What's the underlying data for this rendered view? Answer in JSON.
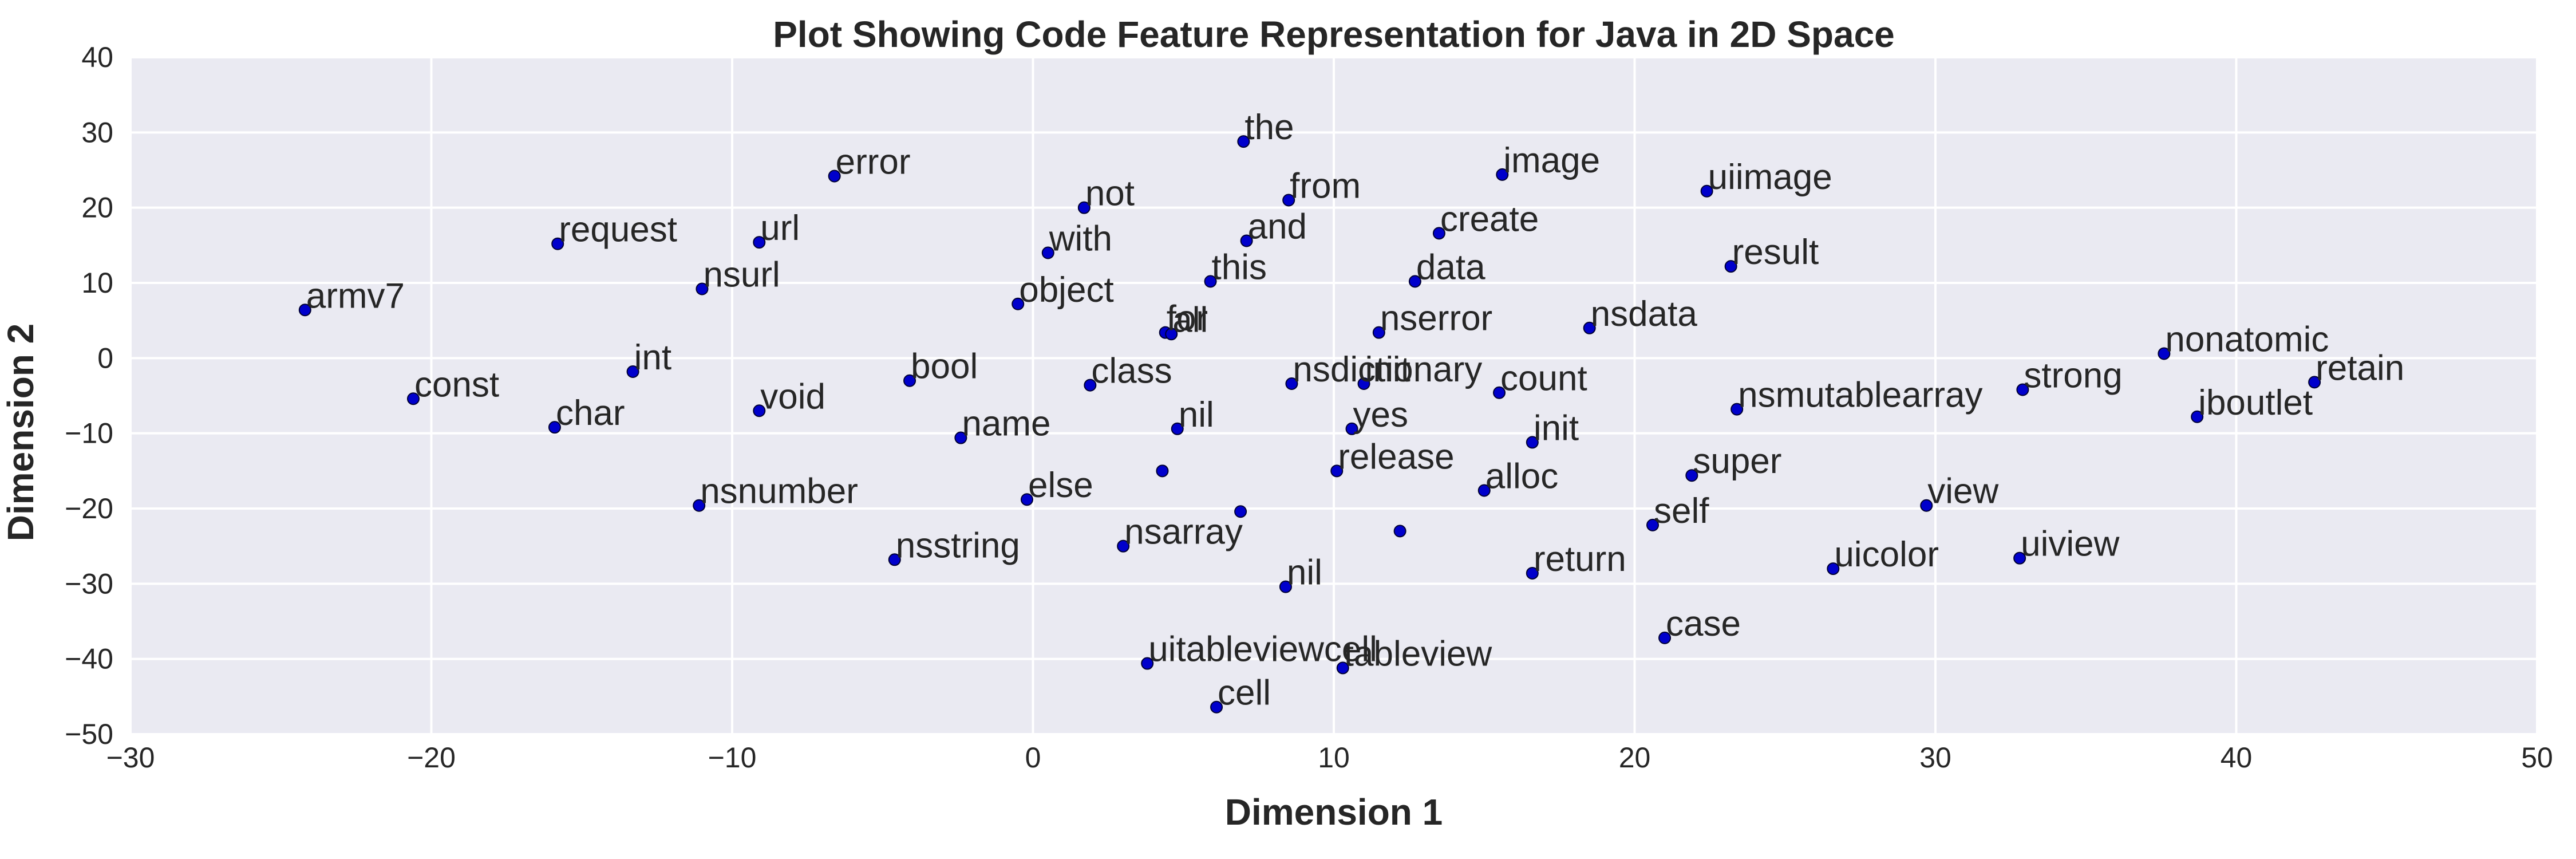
{
  "chart_data": {
    "type": "scatter",
    "title": "Plot Showing Code Feature Representation for Java in 2D Space",
    "xlabel": "Dimension 1",
    "ylabel": "Dimension 2",
    "xlim": [
      -30,
      50
    ],
    "ylim": [
      -50,
      40
    ],
    "xticks": [
      -30,
      -20,
      -10,
      0,
      10,
      20,
      30,
      40,
      50
    ],
    "yticks": [
      -50,
      -40,
      -30,
      -20,
      -10,
      0,
      10,
      20,
      30,
      40
    ],
    "xtick_labels": [
      "−30",
      "−20",
      "−10",
      "0",
      "10",
      "20",
      "30",
      "40",
      "50"
    ],
    "ytick_labels": [
      "−50",
      "−40",
      "−30",
      "−20",
      "−10",
      "0",
      "10",
      "20",
      "30",
      "40"
    ],
    "grid": true,
    "background_color": "#eaeaf2",
    "point_color": "#0000cc",
    "points": [
      {
        "label": "the",
        "x": 7.0,
        "y": 28.8
      },
      {
        "label": "image",
        "x": 15.6,
        "y": 24.4
      },
      {
        "label": "uiimage",
        "x": 22.4,
        "y": 22.2
      },
      {
        "label": "error",
        "x": -6.6,
        "y": 24.2
      },
      {
        "label": "from",
        "x": 8.5,
        "y": 21.0
      },
      {
        "label": "not",
        "x": 1.7,
        "y": 20.0
      },
      {
        "label": "request",
        "x": -15.8,
        "y": 15.2
      },
      {
        "label": "url",
        "x": -9.1,
        "y": 15.4
      },
      {
        "label": "with",
        "x": 0.5,
        "y": 14.0
      },
      {
        "label": "and",
        "x": 7.1,
        "y": 15.6
      },
      {
        "label": "create",
        "x": 13.5,
        "y": 16.6
      },
      {
        "label": "result",
        "x": 23.2,
        "y": 12.2
      },
      {
        "label": "nsurl",
        "x": -11.0,
        "y": 9.2
      },
      {
        "label": "this",
        "x": 5.9,
        "y": 10.2
      },
      {
        "label": "data",
        "x": 12.7,
        "y": 10.2
      },
      {
        "label": "armv7",
        "x": -24.2,
        "y": 6.4
      },
      {
        "label": "object",
        "x": -0.5,
        "y": 7.2
      },
      {
        "label": "for",
        "x": 4.4,
        "y": 3.4
      },
      {
        "label": "nserror",
        "x": 11.5,
        "y": 3.4
      },
      {
        "label": "nsdata",
        "x": 18.5,
        "y": 4.0
      },
      {
        "label": "nonatomic",
        "x": 37.6,
        "y": 0.6
      },
      {
        "label": "all",
        "x": 4.6,
        "y": 3.2
      },
      {
        "label": "int",
        "x": -13.3,
        "y": -1.8
      },
      {
        "label": "bool",
        "x": -4.1,
        "y": -3.0
      },
      {
        "label": "class",
        "x": 1.9,
        "y": -3.6
      },
      {
        "label": "nsdictionary",
        "x": 8.6,
        "y": -3.4
      },
      {
        "label": "init",
        "x": 11.0,
        "y": -3.4
      },
      {
        "label": "count",
        "x": 15.5,
        "y": -4.6
      },
      {
        "label": "strong",
        "x": 32.9,
        "y": -4.2
      },
      {
        "label": "retain",
        "x": 42.6,
        "y": -3.2
      },
      {
        "label": "const",
        "x": -20.6,
        "y": -5.4
      },
      {
        "label": "void",
        "x": -9.1,
        "y": -7.0
      },
      {
        "label": "nsmutablearray",
        "x": 23.4,
        "y": -6.8
      },
      {
        "label": "iboutlet",
        "x": 38.7,
        "y": -7.8
      },
      {
        "label": "char",
        "x": -15.9,
        "y": -9.2
      },
      {
        "label": "yes",
        "x": 10.6,
        "y": -9.4
      },
      {
        "label": "name",
        "x": -2.4,
        "y": -10.6
      },
      {
        "label": "init",
        "x": 16.6,
        "y": -11.2
      },
      {
        "label": "nil",
        "x": 4.8,
        "y": -9.4
      },
      {
        "label": "nsnumber",
        "x": -11.1,
        "y": -19.6
      },
      {
        "label": "else",
        "x": -0.2,
        "y": -18.8
      },
      {
        "label": "super",
        "x": 21.9,
        "y": -15.6
      },
      {
        "label": "view",
        "x": 29.7,
        "y": -19.6
      },
      {
        "label": "release",
        "x": 10.1,
        "y": -15.0
      },
      {
        "label": "alloc",
        "x": 15.0,
        "y": -17.6
      },
      {
        "label": "self",
        "x": 20.6,
        "y": -22.2
      },
      {
        "label": "nsarray",
        "x": 3.0,
        "y": -25.0
      },
      {
        "label": "nsstring",
        "x": -4.6,
        "y": -26.8
      },
      {
        "label": "return",
        "x": 16.6,
        "y": -28.6
      },
      {
        "label": "uicolor",
        "x": 26.6,
        "y": -28.0
      },
      {
        "label": "uiview",
        "x": 32.8,
        "y": -26.6
      },
      {
        "label": "nil",
        "x": 8.4,
        "y": -30.4
      },
      {
        "label": "case",
        "x": 21.0,
        "y": -37.2
      },
      {
        "label": "uitableviewcell",
        "x": 3.8,
        "y": -40.6
      },
      {
        "label": "tableview",
        "x": 10.3,
        "y": -41.2
      },
      {
        "label": "cell",
        "x": 6.1,
        "y": -46.4
      },
      {
        "label": "",
        "x": 4.3,
        "y": -15.0
      },
      {
        "label": "",
        "x": 6.9,
        "y": -20.4
      },
      {
        "label": "",
        "x": 12.2,
        "y": -23.0
      }
    ]
  }
}
